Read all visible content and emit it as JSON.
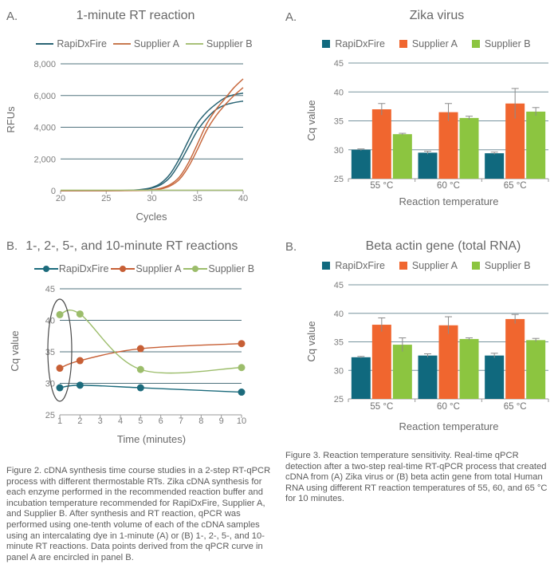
{
  "captions": {
    "fig2": "Figure 2. cDNA synthesis time course studies in a 2-step RT-qPCR process with different thermostable RTs. Zika cDNA synthesis for each enzyme performed in the recommended reaction buffer and incubation temperature recommended for RapiDxFire, Supplier A, and Supplier B. After synthesis and RT reaction, qPCR was performed using one-tenth volume of each of the cDNA samples using an intercalating dye in 1-minute (A) or (B) 1-, 2-, 5-, and 10-minute RT reactions. Data points derived from the qPCR curve in panel A are encircled in panel B.",
    "fig3": "Figure 3. Reaction temperature sensitivity. Real-time qPCR detection after a two-step real-time RT-qPCR process that created cDNA from (A) Zika virus or (B) beta actin gene from total Human RNA using different RT reaction temperatures of 55, 60, and 65 °C for 10 minutes."
  },
  "chart_data": [
    {
      "id": "rt1",
      "type": "line",
      "panel_label": "A.",
      "title": "1-minute RT reaction",
      "xlabel": "Cycles",
      "ylabel": "RFUs",
      "xlim": [
        20,
        40
      ],
      "xticks": [
        20,
        25,
        30,
        35,
        40
      ],
      "ylim": [
        0,
        8000
      ],
      "yticks": [
        0,
        2000,
        4000,
        6000,
        8000
      ],
      "ytick_labels": [
        "0",
        "2,000",
        "4,000",
        "6,000",
        "8,000"
      ],
      "grid": "on",
      "legend_position": "top",
      "legend": [
        {
          "label": "RapiDxFire",
          "color": "#2a6474"
        },
        {
          "label": "Supplier A",
          "color": "#c87a50"
        },
        {
          "label": "Supplier B",
          "color": "#a9c178"
        }
      ],
      "series": [
        {
          "name": "RapiDxFire rep 1",
          "color": "#2a6474",
          "x": [
            20,
            26,
            28,
            29,
            30,
            31,
            32,
            33,
            34,
            35,
            36,
            37,
            38,
            39,
            40
          ],
          "y": [
            0,
            10,
            40,
            90,
            200,
            480,
            1050,
            2000,
            3150,
            4250,
            4950,
            5450,
            5850,
            6050,
            6150
          ]
        },
        {
          "name": "RapiDxFire rep 2",
          "color": "#2a6474",
          "x": [
            20,
            26,
            28,
            29,
            30,
            31,
            32,
            33,
            34,
            35,
            36,
            37,
            38,
            39,
            40
          ],
          "y": [
            0,
            5,
            30,
            70,
            160,
            380,
            850,
            1700,
            2750,
            3800,
            4550,
            5100,
            5400,
            5550,
            5650
          ]
        },
        {
          "name": "Supplier A rep 1",
          "color": "#c86a40",
          "x": [
            20,
            28,
            30,
            31,
            32,
            33,
            34,
            35,
            36,
            37,
            38,
            39,
            40
          ],
          "y": [
            0,
            10,
            60,
            150,
            380,
            850,
            1750,
            2950,
            4200,
            5100,
            5800,
            6500,
            7050
          ]
        },
        {
          "name": "Supplier A rep 2",
          "color": "#c86a40",
          "x": [
            20,
            28,
            30,
            31,
            32,
            33,
            34,
            35,
            36,
            37,
            38,
            39,
            40
          ],
          "y": [
            0,
            5,
            40,
            110,
            300,
            700,
            1500,
            2600,
            3800,
            4700,
            5400,
            6000,
            6500
          ]
        },
        {
          "name": "Supplier B",
          "color": "#a9c178",
          "x": [
            20,
            25,
            30,
            35,
            40
          ],
          "y": [
            30,
            30,
            30,
            30,
            30
          ]
        }
      ]
    },
    {
      "id": "zika-virus",
      "type": "bar",
      "panel_label": "A.",
      "title": "Zika virus",
      "xlabel": "Reaction temperature",
      "ylabel": "Cq value",
      "categories": [
        "55 °C",
        "60 °C",
        "65 °C"
      ],
      "ylim": [
        25,
        45
      ],
      "yticks": [
        25,
        30,
        35,
        40,
        45
      ],
      "grid": "on",
      "legend_position": "top",
      "legend": [
        {
          "label": "RapiDxFire",
          "color": "#10697e"
        },
        {
          "label": "Supplier A",
          "color": "#f0662f"
        },
        {
          "label": "Supplier B",
          "color": "#8cc540"
        }
      ],
      "series": [
        {
          "name": "RapiDxFire",
          "color": "#10697e",
          "values": [
            30.0,
            29.5,
            29.4
          ],
          "errors": [
            0.15,
            0.25,
            0.2
          ]
        },
        {
          "name": "Supplier A",
          "color": "#f0662f",
          "values": [
            37.0,
            36.5,
            38.0
          ],
          "errors": [
            1.0,
            1.5,
            2.6
          ]
        },
        {
          "name": "Supplier B",
          "color": "#8cc540",
          "values": [
            32.7,
            35.5,
            36.6
          ],
          "errors": [
            0.15,
            0.3,
            0.7
          ]
        }
      ]
    },
    {
      "id": "rt-time-course",
      "type": "line",
      "panel_label": "B.",
      "title": "1-, 2-, 5-, and 10-minute RT reactions",
      "xlabel": "Time (minutes)",
      "ylabel": "Cq value",
      "xlim": [
        1,
        10
      ],
      "xticks": [
        1,
        2,
        3,
        4,
        5,
        6,
        7,
        8,
        9,
        10
      ],
      "ylim": [
        25,
        45
      ],
      "yticks": [
        25,
        30,
        35,
        40,
        45
      ],
      "grid": "on",
      "legend_position": "top",
      "legend": [
        {
          "label": "RapiDxFire",
          "color": "#1c6b7c"
        },
        {
          "label": "Supplier A",
          "color": "#c75f35"
        },
        {
          "label": "Supplier B",
          "color": "#9cbd6b"
        }
      ],
      "series": [
        {
          "name": "RapiDxFire",
          "color": "#1c6b7c",
          "marker": true,
          "x": [
            1,
            2,
            5,
            10
          ],
          "y": [
            29.3,
            29.7,
            29.3,
            28.6
          ]
        },
        {
          "name": "Supplier A",
          "color": "#c75f35",
          "marker": true,
          "x": [
            1,
            2,
            5,
            10
          ],
          "y": [
            32.4,
            33.6,
            35.5,
            36.3
          ]
        },
        {
          "name": "Supplier B",
          "color": "#9cbd6b",
          "marker": true,
          "x": [
            1,
            2,
            5,
            10
          ],
          "y": [
            40.9,
            41.0,
            32.2,
            32.5
          ]
        }
      ],
      "annotation": {
        "type": "ellipse",
        "at_x": 1,
        "meaning": "data points derived from the qPCR curve in panel A"
      }
    },
    {
      "id": "beta-actin",
      "type": "bar",
      "panel_label": "B.",
      "title": "Beta actin gene (total RNA)",
      "xlabel": "Reaction temperature",
      "ylabel": "Cq value",
      "categories": [
        "55 °C",
        "60 °C",
        "65 °C"
      ],
      "ylim": [
        25,
        45
      ],
      "yticks": [
        25,
        30,
        35,
        40,
        45
      ],
      "grid": "on",
      "legend_position": "top",
      "legend": [
        {
          "label": "RapiDxFire",
          "color": "#10697e"
        },
        {
          "label": "Supplier A",
          "color": "#f0662f"
        },
        {
          "label": "Supplier B",
          "color": "#8cc540"
        }
      ],
      "series": [
        {
          "name": "RapiDxFire",
          "color": "#10697e",
          "values": [
            32.3,
            32.6,
            32.6
          ],
          "errors": [
            0.15,
            0.3,
            0.4
          ]
        },
        {
          "name": "Supplier A",
          "color": "#f0662f",
          "values": [
            38.0,
            37.9,
            39.0
          ],
          "errors": [
            1.2,
            1.5,
            0.8
          ]
        },
        {
          "name": "Supplier B",
          "color": "#8cc540",
          "values": [
            34.5,
            35.5,
            35.3
          ],
          "errors": [
            1.2,
            0.2,
            0.3
          ]
        }
      ]
    }
  ]
}
